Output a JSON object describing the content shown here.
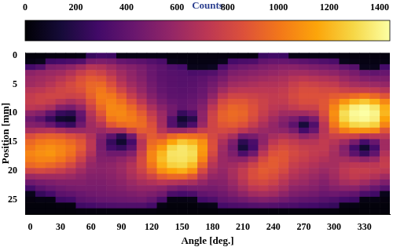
{
  "chart_data": {
    "type": "heatmap",
    "x_label": "Angle [deg.]",
    "y_label": "Position [mm]",
    "x": [
      0,
      10,
      20,
      30,
      40,
      50,
      60,
      70,
      80,
      90,
      100,
      110,
      120,
      130,
      140,
      150,
      160,
      170,
      180,
      190,
      200,
      210,
      220,
      230,
      240,
      250,
      260,
      270,
      280,
      290,
      300,
      310,
      320,
      330,
      340,
      350
    ],
    "y": [
      0,
      1,
      2,
      3,
      4,
      5,
      6,
      7,
      8,
      9,
      10,
      11,
      12,
      13,
      14,
      15,
      16,
      17,
      18,
      19,
      20,
      21,
      22,
      23,
      24,
      25,
      26,
      27
    ],
    "values": [
      [
        20,
        40,
        300,
        550,
        600,
        620,
        700,
        750,
        760,
        720,
        560,
        450,
        520,
        650,
        850,
        950,
        1000,
        1050,
        1020,
        950,
        800,
        600,
        450,
        300,
        60,
        30,
        20,
        20
      ],
      [
        20,
        60,
        350,
        580,
        620,
        650,
        720,
        780,
        780,
        700,
        520,
        380,
        500,
        680,
        900,
        1000,
        1060,
        1080,
        1050,
        980,
        820,
        620,
        480,
        380,
        250,
        40,
        20,
        20
      ],
      [
        30,
        280,
        500,
        600,
        650,
        700,
        760,
        800,
        760,
        650,
        400,
        250,
        420,
        700,
        920,
        1020,
        1080,
        1100,
        1050,
        950,
        800,
        620,
        500,
        420,
        300,
        40,
        20,
        20
      ],
      [
        30,
        300,
        520,
        620,
        700,
        760,
        800,
        800,
        700,
        520,
        250,
        120,
        300,
        650,
        900,
        1000,
        1050,
        1050,
        1000,
        900,
        760,
        620,
        520,
        450,
        380,
        280,
        30,
        20
      ],
      [
        30,
        320,
        560,
        680,
        760,
        820,
        820,
        780,
        650,
        480,
        220,
        100,
        250,
        600,
        850,
        950,
        1000,
        980,
        920,
        820,
        700,
        600,
        520,
        470,
        400,
        300,
        30,
        20
      ],
      [
        40,
        350,
        620,
        760,
        850,
        880,
        860,
        800,
        700,
        580,
        420,
        380,
        450,
        600,
        800,
        880,
        900,
        850,
        780,
        700,
        620,
        560,
        520,
        480,
        430,
        380,
        280,
        30
      ],
      [
        250,
        480,
        700,
        820,
        900,
        940,
        950,
        920,
        860,
        780,
        700,
        650,
        620,
        620,
        680,
        720,
        720,
        680,
        620,
        580,
        550,
        520,
        500,
        480,
        450,
        400,
        300,
        30
      ],
      [
        280,
        500,
        680,
        780,
        880,
        950,
        1000,
        1020,
        1000,
        950,
        880,
        800,
        700,
        600,
        520,
        480,
        480,
        500,
        520,
        540,
        540,
        520,
        500,
        480,
        460,
        420,
        320,
        30
      ],
      [
        270,
        480,
        620,
        700,
        780,
        850,
        920,
        1000,
        1040,
        1060,
        1050,
        1000,
        880,
        650,
        380,
        250,
        300,
        450,
        520,
        560,
        560,
        540,
        520,
        500,
        470,
        430,
        330,
        30
      ],
      [
        40,
        420,
        560,
        620,
        660,
        720,
        800,
        900,
        980,
        1040,
        1060,
        1040,
        950,
        650,
        220,
        120,
        250,
        450,
        560,
        600,
        600,
        580,
        550,
        520,
        480,
        440,
        340,
        30
      ],
      [
        40,
        400,
        520,
        560,
        580,
        620,
        680,
        760,
        860,
        950,
        1000,
        1020,
        980,
        800,
        450,
        300,
        380,
        520,
        620,
        680,
        680,
        650,
        600,
        560,
        500,
        450,
        340,
        30
      ],
      [
        40,
        380,
        480,
        500,
        520,
        550,
        580,
        640,
        720,
        820,
        900,
        950,
        960,
        900,
        780,
        700,
        720,
        780,
        820,
        820,
        780,
        720,
        650,
        580,
        520,
        460,
        340,
        30
      ],
      [
        40,
        350,
        420,
        430,
        440,
        460,
        480,
        520,
        580,
        660,
        740,
        800,
        850,
        880,
        900,
        950,
        1000,
        1050,
        1050,
        1000,
        920,
        800,
        680,
        580,
        500,
        420,
        300,
        30
      ],
      [
        40,
        320,
        380,
        380,
        390,
        400,
        410,
        440,
        480,
        540,
        600,
        620,
        640,
        700,
        850,
        1000,
        1120,
        1200,
        1220,
        1180,
        1080,
        900,
        720,
        560,
        460,
        320,
        40,
        20
      ],
      [
        30,
        60,
        330,
        360,
        370,
        370,
        380,
        390,
        420,
        460,
        450,
        350,
        350,
        600,
        950,
        1150,
        1300,
        1340,
        1330,
        1280,
        1150,
        950,
        700,
        500,
        320,
        40,
        20,
        20
      ],
      [
        30,
        50,
        300,
        350,
        360,
        360,
        370,
        380,
        400,
        400,
        250,
        120,
        200,
        600,
        1000,
        1250,
        1350,
        1350,
        1340,
        1300,
        1180,
        950,
        680,
        460,
        300,
        40,
        20,
        20
      ],
      [
        30,
        40,
        60,
        320,
        360,
        370,
        380,
        400,
        420,
        440,
        330,
        200,
        320,
        650,
        980,
        1200,
        1300,
        1320,
        1300,
        1220,
        1080,
        880,
        650,
        480,
        320,
        50,
        20,
        20
      ],
      [
        30,
        40,
        60,
        330,
        380,
        400,
        420,
        440,
        480,
        520,
        560,
        560,
        600,
        760,
        950,
        1080,
        1120,
        1100,
        1050,
        950,
        820,
        700,
        580,
        480,
        400,
        300,
        40,
        20
      ],
      [
        30,
        40,
        80,
        350,
        420,
        460,
        500,
        560,
        640,
        720,
        780,
        800,
        800,
        800,
        820,
        850,
        860,
        820,
        760,
        700,
        640,
        580,
        520,
        470,
        420,
        330,
        50,
        20
      ],
      [
        30,
        60,
        320,
        420,
        480,
        540,
        620,
        720,
        820,
        880,
        920,
        920,
        880,
        820,
        740,
        660,
        620,
        600,
        600,
        600,
        580,
        560,
        530,
        500,
        450,
        400,
        300,
        30
      ],
      [
        30,
        300,
        420,
        500,
        560,
        620,
        700,
        800,
        880,
        940,
        960,
        950,
        900,
        800,
        650,
        500,
        460,
        500,
        560,
        620,
        650,
        640,
        600,
        560,
        500,
        430,
        320,
        30
      ],
      [
        30,
        320,
        450,
        520,
        580,
        640,
        720,
        800,
        880,
        920,
        940,
        920,
        860,
        720,
        450,
        220,
        150,
        320,
        550,
        680,
        740,
        740,
        700,
        640,
        560,
        460,
        330,
        30
      ],
      [
        30,
        330,
        470,
        540,
        600,
        660,
        720,
        780,
        830,
        860,
        860,
        830,
        760,
        650,
        480,
        320,
        300,
        450,
        650,
        780,
        840,
        840,
        800,
        720,
        620,
        500,
        350,
        30
      ],
      [
        260,
        400,
        500,
        560,
        620,
        680,
        720,
        760,
        780,
        780,
        760,
        720,
        660,
        600,
        560,
        560,
        620,
        720,
        820,
        880,
        900,
        880,
        820,
        740,
        640,
        520,
        360,
        30
      ],
      [
        280,
        420,
        520,
        580,
        640,
        680,
        720,
        740,
        740,
        720,
        680,
        620,
        580,
        580,
        640,
        720,
        800,
        860,
        900,
        900,
        880,
        840,
        780,
        700,
        620,
        500,
        350,
        30
      ],
      [
        270,
        420,
        540,
        600,
        660,
        700,
        740,
        760,
        740,
        700,
        620,
        540,
        500,
        560,
        680,
        780,
        840,
        880,
        880,
        860,
        820,
        760,
        700,
        640,
        560,
        460,
        330,
        30
      ],
      [
        40,
        400,
        540,
        620,
        700,
        760,
        800,
        820,
        800,
        740,
        620,
        480,
        380,
        480,
        640,
        740,
        800,
        820,
        800,
        760,
        720,
        680,
        620,
        560,
        500,
        420,
        320,
        30
      ],
      [
        40,
        380,
        520,
        620,
        720,
        800,
        840,
        860,
        840,
        780,
        620,
        380,
        150,
        300,
        560,
        700,
        760,
        780,
        760,
        720,
        680,
        640,
        600,
        540,
        480,
        400,
        300,
        30
      ],
      [
        40,
        360,
        500,
        600,
        700,
        780,
        840,
        860,
        840,
        780,
        660,
        480,
        340,
        420,
        600,
        700,
        740,
        740,
        720,
        680,
        640,
        600,
        560,
        520,
        460,
        390,
        290,
        30
      ],
      [
        40,
        340,
        480,
        580,
        680,
        760,
        820,
        860,
        880,
        880,
        840,
        780,
        720,
        700,
        720,
        740,
        740,
        720,
        680,
        640,
        600,
        560,
        520,
        480,
        430,
        360,
        270,
        30
      ],
      [
        40,
        320,
        460,
        560,
        660,
        740,
        820,
        900,
        980,
        1050,
        1080,
        1060,
        1000,
        900,
        780,
        700,
        660,
        640,
        640,
        640,
        640,
        620,
        580,
        520,
        440,
        340,
        250,
        30
      ],
      [
        30,
        60,
        400,
        520,
        600,
        680,
        780,
        920,
        1100,
        1250,
        1320,
        1300,
        1200,
        1020,
        800,
        620,
        520,
        540,
        640,
        700,
        720,
        700,
        640,
        540,
        420,
        300,
        40,
        20
      ],
      [
        30,
        50,
        360,
        480,
        560,
        640,
        760,
        960,
        1200,
        1380,
        1420,
        1400,
        1300,
        1080,
        780,
        480,
        300,
        380,
        600,
        720,
        760,
        740,
        660,
        540,
        400,
        280,
        40,
        20
      ],
      [
        30,
        40,
        60,
        420,
        520,
        620,
        760,
        1000,
        1250,
        1420,
        1440,
        1420,
        1320,
        1080,
        700,
        300,
        120,
        250,
        560,
        720,
        760,
        720,
        620,
        480,
        320,
        40,
        20,
        20
      ],
      [
        30,
        40,
        60,
        400,
        500,
        600,
        740,
        950,
        1180,
        1350,
        1400,
        1380,
        1280,
        1050,
        720,
        420,
        300,
        400,
        600,
        720,
        740,
        680,
        560,
        420,
        280,
        40,
        20,
        20
      ],
      [
        30,
        40,
        300,
        420,
        500,
        580,
        700,
        880,
        1060,
        1180,
        1200,
        1150,
        1050,
        880,
        720,
        620,
        620,
        680,
        740,
        760,
        720,
        620,
        500,
        360,
        60,
        30,
        20,
        20
      ]
    ],
    "xlim": [
      -5,
      355
    ],
    "xticks": [
      0,
      30,
      60,
      90,
      120,
      150,
      180,
      210,
      240,
      270,
      300,
      330
    ],
    "ylim": [
      27.5,
      -0.5
    ],
    "yticks": [
      0,
      5,
      10,
      15,
      20,
      25
    ],
    "grid": false,
    "colorbar": {
      "label": "Counts",
      "range": [
        0,
        1440
      ],
      "ticks": [
        0,
        200,
        400,
        600,
        800,
        1000,
        1200,
        1400
      ]
    }
  }
}
